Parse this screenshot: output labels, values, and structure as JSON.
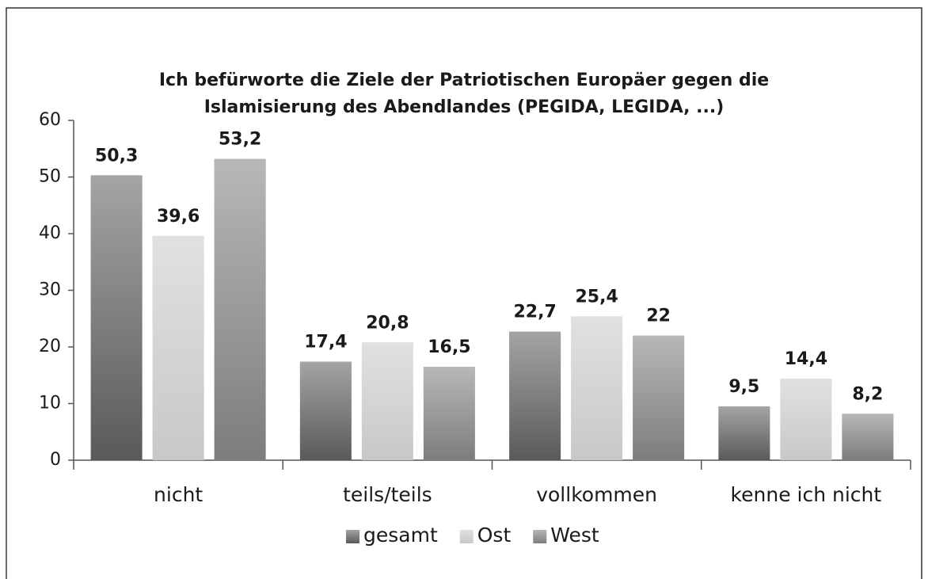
{
  "chart_data": {
    "type": "bar",
    "title": [
      "Ich befürworte die Ziele der Patriotischen Europäer gegen die",
      "Islamisierung des Abendlandes (PEGIDA, LEGIDA, ...)"
    ],
    "categories": [
      "nicht",
      "teils/teils",
      "vollkommen",
      "kenne ich nicht"
    ],
    "series": [
      {
        "name": "gesamt",
        "color": "#5a5a5a",
        "values": [
          50.3,
          17.4,
          22.7,
          9.5
        ],
        "value_labels": [
          "50,3",
          "17,4",
          "22,7",
          "9,5"
        ]
      },
      {
        "name": "Ost",
        "color": "#c8c8c8",
        "values": [
          39.6,
          20.8,
          25.4,
          14.4
        ],
        "value_labels": [
          "39,6",
          "20,8",
          "25,4",
          "14,4"
        ]
      },
      {
        "name": "West",
        "color": "#7d7d7d",
        "values": [
          53.2,
          16.5,
          22,
          8.2
        ],
        "value_labels": [
          "53,2",
          "16,5",
          "22",
          "8,2"
        ]
      }
    ],
    "ylim": [
      0,
      60
    ],
    "yticks": [
      0,
      10,
      20,
      30,
      40,
      50,
      60
    ],
    "grid": false,
    "legend": "bottom"
  }
}
